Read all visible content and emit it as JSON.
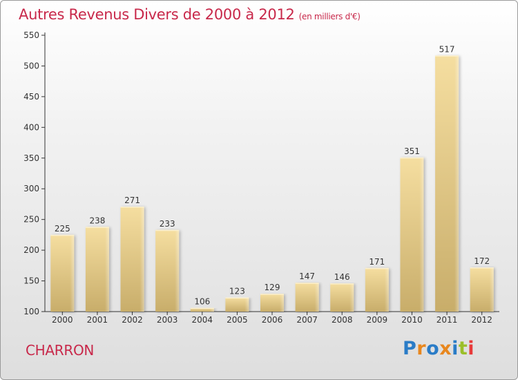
{
  "title": {
    "main": "Autres Revenus Divers de 2000 à 2012",
    "unit": "(en milliers d'€)"
  },
  "commune": "CHARRON",
  "logo": {
    "text": "Proxiti",
    "letter_colors": [
      "#2a7cc7",
      "#e8871e",
      "#2a7cc7",
      "#e8871e",
      "#2a7cc7",
      "#9bbf2a",
      "#e83a3a"
    ]
  },
  "colors": {
    "title": "#c8284a",
    "bar_light": "#f5dea0",
    "bar_dark": "#c8ad6a"
  },
  "chart_data": {
    "type": "bar",
    "title": "Autres Revenus Divers de 2000 à 2012",
    "subtitle": "(en milliers d'€)",
    "categories": [
      "2000",
      "2001",
      "2002",
      "2003",
      "2004",
      "2005",
      "2006",
      "2007",
      "2008",
      "2009",
      "2010",
      "2011",
      "2012"
    ],
    "values": [
      225,
      238,
      271,
      233,
      106,
      123,
      129,
      147,
      146,
      171,
      351,
      517,
      172
    ],
    "ylim": [
      100,
      550
    ],
    "yticks": [
      100,
      150,
      200,
      250,
      300,
      350,
      400,
      450,
      500,
      550
    ],
    "grid": false,
    "data_labels": true
  }
}
